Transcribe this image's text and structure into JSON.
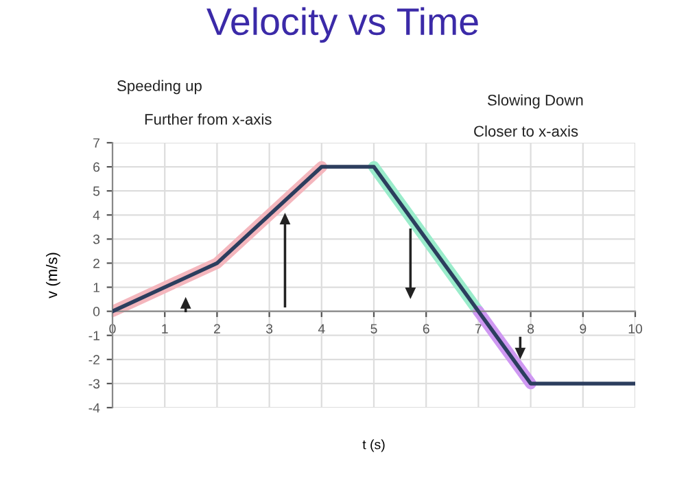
{
  "chart_data": {
    "type": "line",
    "title": "Velocity vs Time",
    "xlabel": "t (s)",
    "ylabel": "v (m/s)",
    "annotations": [
      "Speeding up",
      "Further from x-axis",
      "Slowing Down",
      "Closer to x-axis"
    ],
    "series": [
      {
        "color": "#f4b6bd",
        "x": [
          0,
          2,
          4
        ],
        "values": [
          0,
          2,
          6
        ]
      },
      {
        "color": "#9aeccb",
        "x": [
          5,
          7
        ],
        "values": [
          6,
          0
        ]
      },
      {
        "color": "#cf98f2",
        "x": [
          7,
          8
        ],
        "values": [
          0,
          -3
        ]
      },
      {
        "color": "#2c3e5e",
        "x": [
          0,
          2,
          4,
          5,
          7,
          8,
          10
        ],
        "values": [
          0,
          2,
          6,
          6,
          0,
          -3,
          -3
        ]
      }
    ],
    "xlim": [
      0,
      10
    ],
    "ylim": [
      -4,
      7
    ],
    "xticks": [
      0,
      1,
      2,
      3,
      4,
      5,
      6,
      7,
      8,
      9,
      10
    ],
    "yticks": [
      -4,
      -3,
      -2,
      -1,
      0,
      1,
      2,
      3,
      4,
      5,
      6,
      7
    ],
    "grid": true,
    "marker": "none",
    "line_style": "solid"
  }
}
